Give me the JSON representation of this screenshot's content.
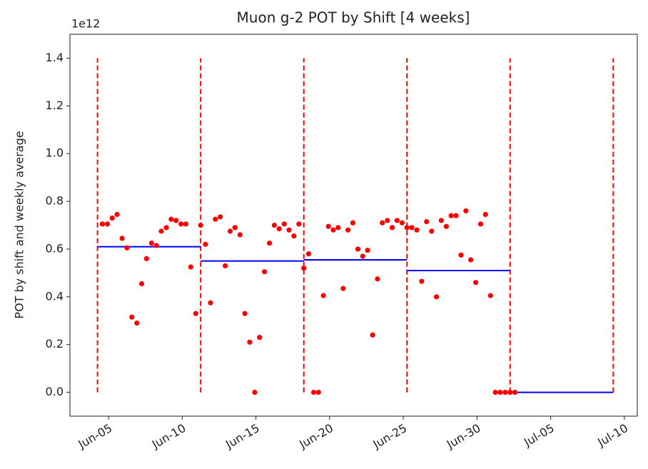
{
  "chart_data": {
    "type": "scatter",
    "title": "Muon g-2 POT by Shift [4 weeks]",
    "ylabel": "POT by shift and weekly average",
    "y_offset_label": "1e12",
    "xlim": [
      2.38,
      40.88
    ],
    "xticks": [
      {
        "value": 5,
        "label": "Jun-05"
      },
      {
        "value": 10,
        "label": "Jun-10"
      },
      {
        "value": 15,
        "label": "Jun-15"
      },
      {
        "value": 20,
        "label": "Jun-20"
      },
      {
        "value": 25,
        "label": "Jun-25"
      },
      {
        "value": 30,
        "label": "Jun-30"
      },
      {
        "value": 35,
        "label": "Jul-05"
      },
      {
        "value": 40,
        "label": "Jul-10"
      }
    ],
    "ylim": [
      -0.1,
      1.5
    ],
    "yticks": [
      {
        "value": 0,
        "label": "0.0"
      },
      0.2,
      0.4,
      0.6,
      0.8,
      {
        "value": 1,
        "label": "1.0"
      },
      1.2,
      1.4
    ],
    "series": [
      {
        "color": "red",
        "x": [
          4.58,
          4.92,
          5.25,
          5.58,
          5.92,
          6.25,
          6.58,
          6.92,
          7.25,
          7.58,
          7.92,
          8.25,
          8.58,
          8.92,
          9.25,
          9.58,
          9.92,
          10.25,
          10.58,
          10.92,
          11.25,
          11.58,
          11.92,
          12.25,
          12.58,
          12.92,
          13.25,
          13.58,
          13.92,
          14.25,
          14.58,
          14.92,
          15.25,
          15.58,
          15.92,
          16.25,
          16.58,
          16.92,
          17.25,
          17.58,
          17.92,
          18.25,
          18.58,
          18.92,
          19.25,
          19.58,
          19.92,
          20.25,
          20.58,
          20.92,
          21.25,
          21.58,
          21.92,
          22.25,
          22.58,
          22.92,
          23.25,
          23.58,
          23.92,
          24.25,
          24.58,
          24.92,
          25.25,
          25.58,
          25.92,
          26.25,
          26.58,
          26.92,
          27.25,
          27.58,
          27.92,
          28.25,
          28.58,
          28.92,
          29.25,
          29.58,
          29.92,
          30.25,
          30.58,
          30.92,
          31.25,
          31.58,
          31.92,
          32.25,
          32.58
        ],
        "values": [
          0.705,
          0.705,
          0.73,
          0.745,
          0.645,
          0.605,
          0.315,
          0.29,
          0.455,
          0.56,
          0.625,
          0.615,
          0.675,
          0.69,
          0.725,
          0.72,
          0.705,
          0.705,
          0.525,
          0.33,
          0.7,
          0.62,
          0.375,
          0.725,
          0.735,
          0.53,
          0.675,
          0.69,
          0.66,
          0.33,
          0.21,
          0,
          0.23,
          0.505,
          0.625,
          0.7,
          0.685,
          0.705,
          0.68,
          0.655,
          0.705,
          0.52,
          0.58,
          0,
          0,
          0.405,
          0.695,
          0.68,
          0.69,
          0.435,
          0.68,
          0.71,
          0.6,
          0.57,
          0.595,
          0.24,
          0.475,
          0.71,
          0.72,
          0.69,
          0.72,
          0.71,
          0.69,
          0.69,
          0.68,
          0.465,
          0.715,
          0.675,
          0.4,
          0.72,
          0.695,
          0.74,
          0.74,
          0.575,
          0.76,
          0.555,
          0.46,
          0.705,
          0.745,
          0.405,
          0,
          0,
          0,
          0,
          0
        ]
      }
    ],
    "weekly_average": {
      "color": "blue",
      "starts": [
        4.25,
        11.25,
        18.25,
        25.25,
        32.25
      ],
      "ends": [
        11.25,
        18.25,
        25.25,
        32.25,
        39.25
      ],
      "values": [
        0.61,
        0.55,
        0.555,
        0.51,
        0
      ]
    },
    "week_boundaries": {
      "color": "red",
      "x": [
        4.25,
        11.25,
        18.25,
        25.25,
        32.25,
        39.25
      ],
      "range": [
        0,
        1.4
      ]
    }
  }
}
